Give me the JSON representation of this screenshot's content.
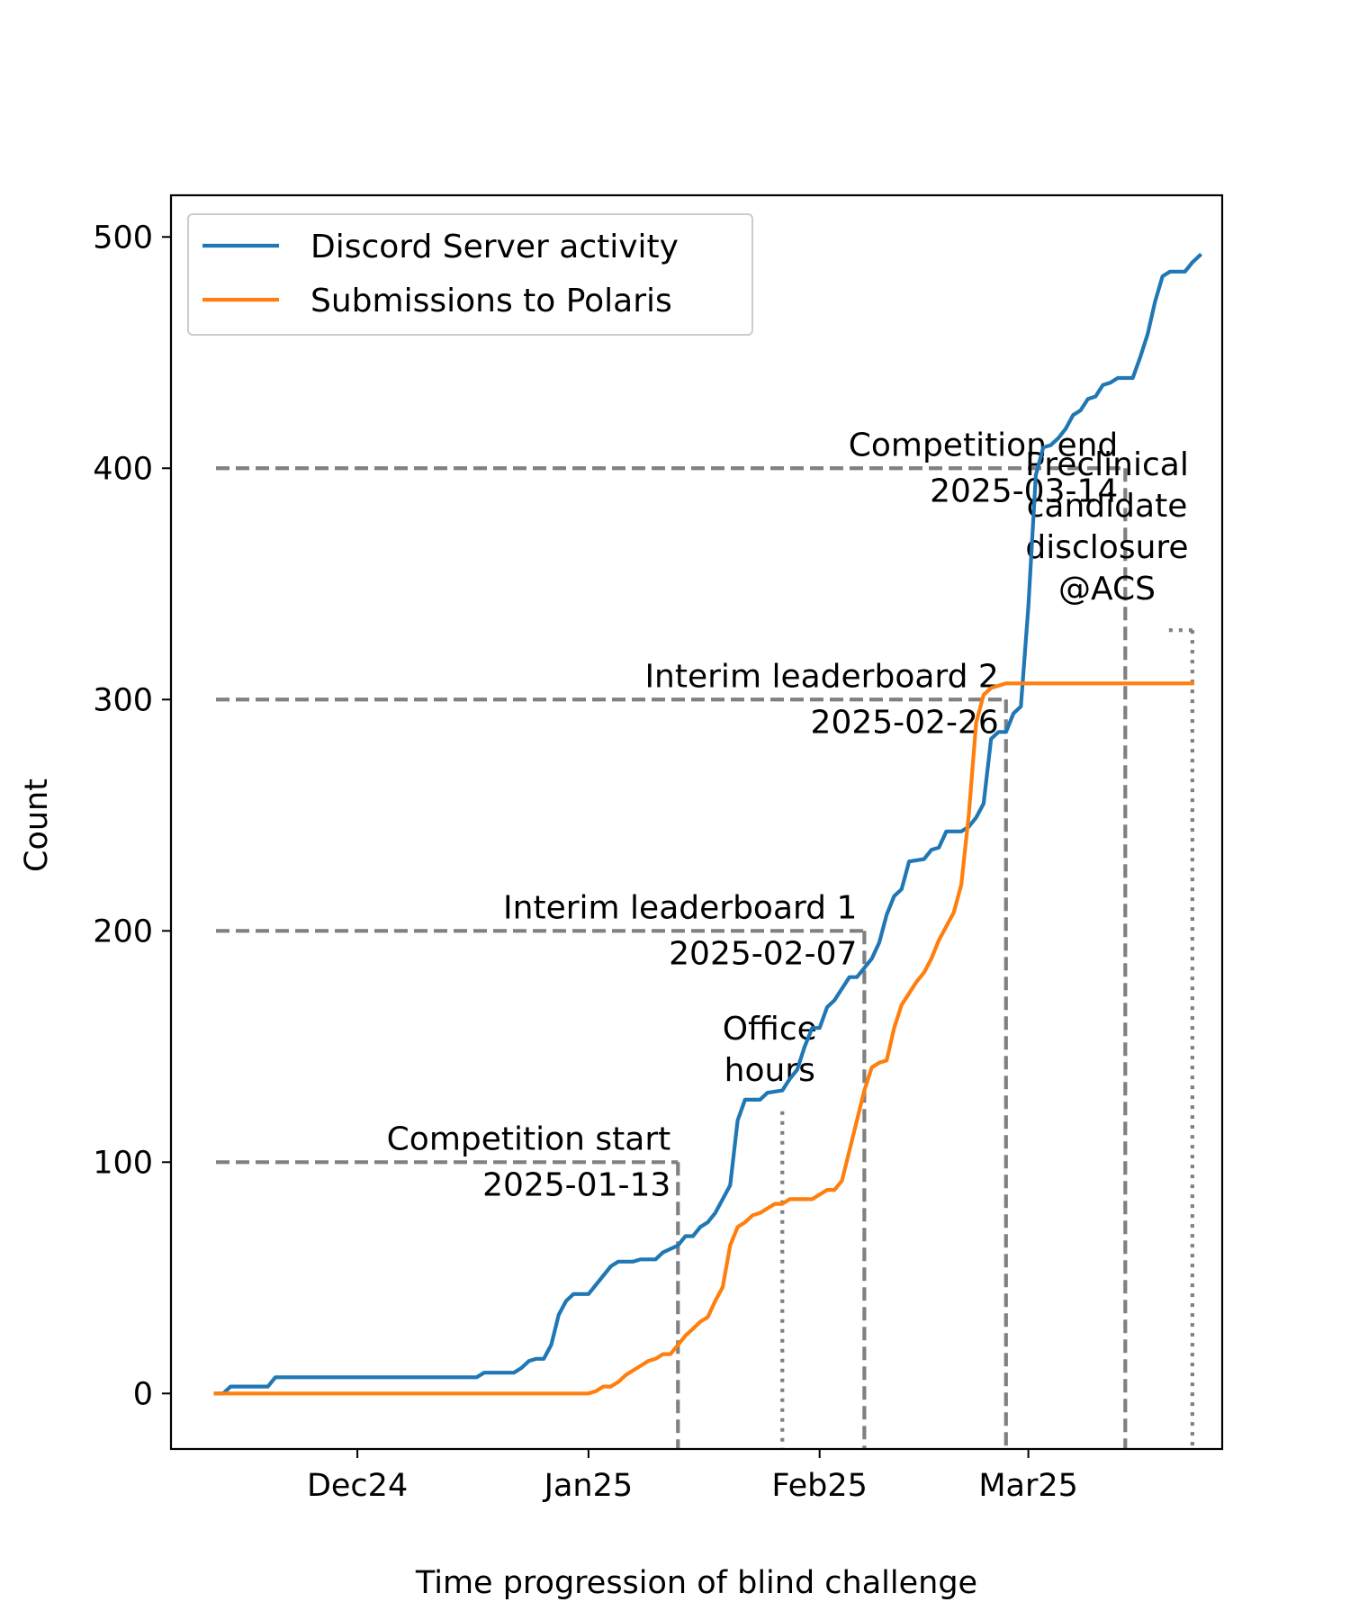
{
  "chart_data": {
    "type": "line",
    "xlabel": "Time progression of blind challenge",
    "ylabel": "Count",
    "xlim": [
      "2024-11-06",
      "2025-03-27"
    ],
    "ylim": [
      -24,
      518
    ],
    "x_ticks": [
      {
        "date": "2024-12-01",
        "label": "Dec24"
      },
      {
        "date": "2025-01-01",
        "label": "Jan25"
      },
      {
        "date": "2025-02-01",
        "label": "Feb25"
      },
      {
        "date": "2025-03-01",
        "label": "Mar25"
      }
    ],
    "y_ticks": [
      0,
      100,
      200,
      300,
      400,
      500
    ],
    "grid": false,
    "legend_position": "upper-left",
    "series": [
      {
        "name": "Discord Server activity",
        "color": "#1f77b4",
        "points": [
          [
            "2024-11-12",
            0
          ],
          [
            "2024-11-13",
            0
          ],
          [
            "2024-11-14",
            3
          ],
          [
            "2024-11-17",
            3
          ],
          [
            "2024-11-19",
            3
          ],
          [
            "2024-11-20",
            7
          ],
          [
            "2024-12-01",
            7
          ],
          [
            "2024-12-10",
            7
          ],
          [
            "2024-12-17",
            7
          ],
          [
            "2024-12-18",
            9
          ],
          [
            "2024-12-22",
            9
          ],
          [
            "2024-12-23",
            11
          ],
          [
            "2024-12-24",
            14
          ],
          [
            "2024-12-25",
            15
          ],
          [
            "2024-12-26",
            15
          ],
          [
            "2024-12-27",
            21
          ],
          [
            "2024-12-28",
            34
          ],
          [
            "2024-12-29",
            40
          ],
          [
            "2024-12-30",
            43
          ],
          [
            "2025-01-01",
            43
          ],
          [
            "2025-01-02",
            47
          ],
          [
            "2025-01-04",
            55
          ],
          [
            "2025-01-05",
            57
          ],
          [
            "2025-01-07",
            57
          ],
          [
            "2025-01-08",
            58
          ],
          [
            "2025-01-10",
            58
          ],
          [
            "2025-01-11",
            61
          ],
          [
            "2025-01-13",
            64
          ],
          [
            "2025-01-14",
            68
          ],
          [
            "2025-01-15",
            68
          ],
          [
            "2025-01-16",
            72
          ],
          [
            "2025-01-17",
            74
          ],
          [
            "2025-01-18",
            78
          ],
          [
            "2025-01-19",
            84
          ],
          [
            "2025-01-20",
            90
          ],
          [
            "2025-01-21",
            118
          ],
          [
            "2025-01-22",
            127
          ],
          [
            "2025-01-24",
            127
          ],
          [
            "2025-01-25",
            130
          ],
          [
            "2025-01-27",
            131
          ],
          [
            "2025-01-28",
            136
          ],
          [
            "2025-01-29",
            140
          ],
          [
            "2025-01-30",
            150
          ],
          [
            "2025-01-31",
            158
          ],
          [
            "2025-02-01",
            158
          ],
          [
            "2025-02-02",
            167
          ],
          [
            "2025-02-03",
            170
          ],
          [
            "2025-02-04",
            175
          ],
          [
            "2025-02-05",
            180
          ],
          [
            "2025-02-06",
            180
          ],
          [
            "2025-02-07",
            184
          ],
          [
            "2025-02-08",
            188
          ],
          [
            "2025-02-09",
            195
          ],
          [
            "2025-02-10",
            207
          ],
          [
            "2025-02-11",
            215
          ],
          [
            "2025-02-12",
            218
          ],
          [
            "2025-02-13",
            230
          ],
          [
            "2025-02-15",
            231
          ],
          [
            "2025-02-16",
            235
          ],
          [
            "2025-02-17",
            236
          ],
          [
            "2025-02-18",
            243
          ],
          [
            "2025-02-20",
            243
          ],
          [
            "2025-02-21",
            245
          ],
          [
            "2025-02-22",
            249
          ],
          [
            "2025-02-23",
            255
          ],
          [
            "2025-02-24",
            283
          ],
          [
            "2025-02-25",
            286
          ],
          [
            "2025-02-26",
            286
          ],
          [
            "2025-02-27",
            294
          ],
          [
            "2025-02-28",
            297
          ],
          [
            "2025-03-01",
            340
          ],
          [
            "2025-03-02",
            397
          ],
          [
            "2025-03-03",
            409
          ],
          [
            "2025-03-04",
            410
          ],
          [
            "2025-03-05",
            413
          ],
          [
            "2025-03-06",
            417
          ],
          [
            "2025-03-07",
            423
          ],
          [
            "2025-03-08",
            425
          ],
          [
            "2025-03-09",
            430
          ],
          [
            "2025-03-10",
            431
          ],
          [
            "2025-03-11",
            436
          ],
          [
            "2025-03-12",
            437
          ],
          [
            "2025-03-13",
            439
          ],
          [
            "2025-03-15",
            439
          ],
          [
            "2025-03-16",
            448
          ],
          [
            "2025-03-17",
            458
          ],
          [
            "2025-03-18",
            472
          ],
          [
            "2025-03-19",
            483
          ],
          [
            "2025-03-20",
            485
          ],
          [
            "2025-03-22",
            485
          ],
          [
            "2025-03-23",
            489
          ],
          [
            "2025-03-24",
            492
          ]
        ]
      },
      {
        "name": "Submissions to Polaris",
        "color": "#ff7f0e",
        "points": [
          [
            "2024-11-12",
            0
          ],
          [
            "2024-12-01",
            0
          ],
          [
            "2025-01-01",
            0
          ],
          [
            "2025-01-02",
            1
          ],
          [
            "2025-01-03",
            3
          ],
          [
            "2025-01-04",
            3
          ],
          [
            "2025-01-05",
            5
          ],
          [
            "2025-01-06",
            8
          ],
          [
            "2025-01-07",
            10
          ],
          [
            "2025-01-08",
            12
          ],
          [
            "2025-01-09",
            14
          ],
          [
            "2025-01-10",
            15
          ],
          [
            "2025-01-11",
            17
          ],
          [
            "2025-01-12",
            17
          ],
          [
            "2025-01-13",
            21
          ],
          [
            "2025-01-14",
            25
          ],
          [
            "2025-01-15",
            28
          ],
          [
            "2025-01-16",
            31
          ],
          [
            "2025-01-17",
            33
          ],
          [
            "2025-01-18",
            40
          ],
          [
            "2025-01-19",
            46
          ],
          [
            "2025-01-20",
            64
          ],
          [
            "2025-01-21",
            72
          ],
          [
            "2025-01-22",
            74
          ],
          [
            "2025-01-23",
            77
          ],
          [
            "2025-01-24",
            78
          ],
          [
            "2025-01-25",
            80
          ],
          [
            "2025-01-26",
            82
          ],
          [
            "2025-01-27",
            82
          ],
          [
            "2025-01-28",
            84
          ],
          [
            "2025-01-31",
            84
          ],
          [
            "2025-02-01",
            86
          ],
          [
            "2025-02-02",
            88
          ],
          [
            "2025-02-03",
            88
          ],
          [
            "2025-02-04",
            92
          ],
          [
            "2025-02-05",
            105
          ],
          [
            "2025-02-06",
            118
          ],
          [
            "2025-02-07",
            131
          ],
          [
            "2025-02-08",
            141
          ],
          [
            "2025-02-09",
            143
          ],
          [
            "2025-02-10",
            144
          ],
          [
            "2025-02-11",
            158
          ],
          [
            "2025-02-12",
            168
          ],
          [
            "2025-02-13",
            173
          ],
          [
            "2025-02-14",
            178
          ],
          [
            "2025-02-15",
            182
          ],
          [
            "2025-02-16",
            188
          ],
          [
            "2025-02-17",
            196
          ],
          [
            "2025-02-18",
            202
          ],
          [
            "2025-02-19",
            208
          ],
          [
            "2025-02-20",
            220
          ],
          [
            "2025-02-21",
            250
          ],
          [
            "2025-02-22",
            290
          ],
          [
            "2025-02-23",
            302
          ],
          [
            "2025-02-24",
            305
          ],
          [
            "2025-02-25",
            306
          ],
          [
            "2025-02-26",
            307
          ],
          [
            "2025-03-01",
            307
          ],
          [
            "2025-03-10",
            307
          ],
          [
            "2025-03-23",
            307
          ]
        ]
      }
    ],
    "annotations": [
      {
        "lines": [
          "Competition start",
          "2025-01-13"
        ],
        "date": "2025-01-13",
        "level": 100,
        "style": "dashed"
      },
      {
        "lines": [
          "Office",
          "hours"
        ],
        "date": "2025-01-27",
        "level": 122,
        "style": "dotted"
      },
      {
        "lines": [
          "Interim leaderboard 1",
          "2025-02-07"
        ],
        "date": "2025-02-07",
        "level": 200,
        "style": "dashed"
      },
      {
        "lines": [
          "Interim leaderboard 2",
          "2025-02-26"
        ],
        "date": "2025-02-26",
        "level": 300,
        "style": "dashed"
      },
      {
        "lines": [
          "Competition end",
          "2025-03-14"
        ],
        "date": "2025-03-14",
        "level": 400,
        "style": "dashed"
      },
      {
        "lines": [
          "Preclinical",
          "candidate",
          "disclosure",
          "@ACS"
        ],
        "date": "2025-03-23",
        "level": 330,
        "style": "dotted"
      }
    ]
  }
}
